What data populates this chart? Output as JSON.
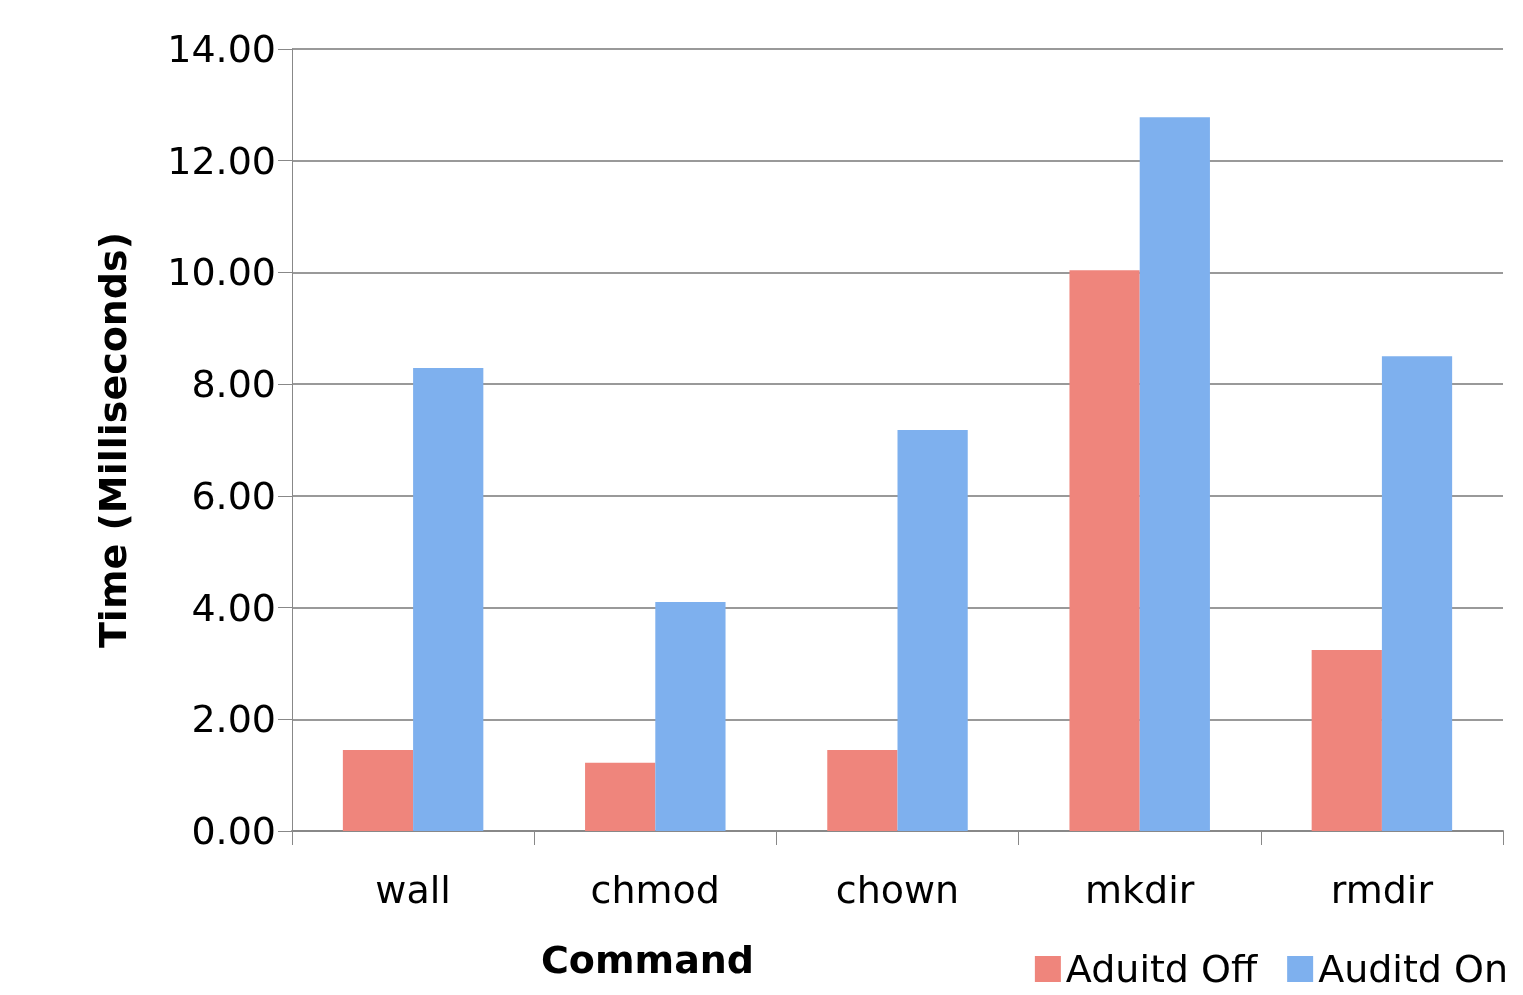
{
  "chart_data": {
    "type": "bar",
    "xlabel": "Command",
    "ylabel": "Time (Milliseconds)",
    "categories": [
      "wall",
      "chmod",
      "chown",
      "mkdir",
      "rmdir"
    ],
    "series": [
      {
        "name": "Aduitd Off",
        "color": "#ef857c",
        "values": [
          1.45,
          1.22,
          1.45,
          10.04,
          3.24
        ]
      },
      {
        "name": "Auditd On",
        "color": "#7eb0ee",
        "values": [
          8.29,
          4.1,
          7.18,
          12.78,
          8.5
        ]
      }
    ],
    "ylim": [
      0,
      14
    ],
    "yticks": [
      {
        "value": 0,
        "label": "0.00"
      },
      {
        "value": 2,
        "label": "2.00"
      },
      {
        "value": 4,
        "label": "4.00"
      },
      {
        "value": 6,
        "label": "6.00"
      },
      {
        "value": 8,
        "label": "8.00"
      },
      {
        "value": 10,
        "label": "10.00"
      },
      {
        "value": 12,
        "label": "12.00"
      },
      {
        "value": 14,
        "label": "14.00"
      }
    ],
    "grid": "y",
    "legend": "bottom right"
  }
}
